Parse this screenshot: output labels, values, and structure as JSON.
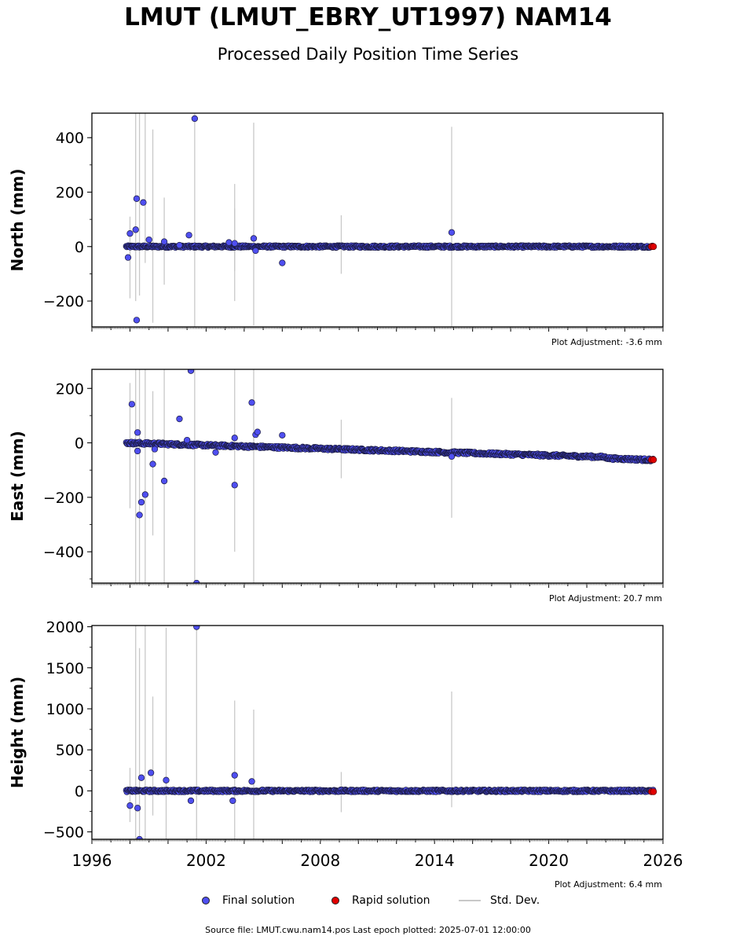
{
  "header": {
    "title": "LMUT (LMUT_EBRY_UT1997) NAM14",
    "subtitle": "Processed Daily Position Time Series"
  },
  "legend": {
    "final_label": "Final solution",
    "rapid_label": "Rapid solution",
    "std_label": "Std. Dev."
  },
  "footer": {
    "source": "Source file: LMUT.cwu.nam14.pos  Last epoch plotted: 2025-07-01 12:00:00"
  },
  "colors": {
    "final": "#4f4ff0",
    "rapid": "#e00000",
    "stddev": "#c8c8c8",
    "marker_edge": "#1a1a40"
  },
  "chart_data": [
    {
      "type": "scatter",
      "panel": "north",
      "ylabel": "North (mm)",
      "adjustment": "Plot Adjustment: -3.6 mm",
      "xlim": [
        1996,
        2026
      ],
      "ylim": [
        -295,
        490
      ],
      "yticks": [
        -200,
        0,
        200,
        400
      ],
      "trend": [
        [
          1997.8,
          0
        ],
        [
          2025.5,
          0
        ]
      ],
      "scatter": 4,
      "outliers": [
        [
          1997.9,
          -40
        ],
        [
          1998.0,
          48
        ],
        [
          1998.3,
          62
        ],
        [
          1998.35,
          176
        ],
        [
          1998.35,
          -270
        ],
        [
          1998.7,
          162
        ],
        [
          1999.0,
          25
        ],
        [
          1999.8,
          18
        ],
        [
          2000.6,
          5
        ],
        [
          2001.1,
          42
        ],
        [
          2001.4,
          470
        ],
        [
          2003.2,
          15
        ],
        [
          2003.5,
          12
        ],
        [
          2004.5,
          30
        ],
        [
          2004.6,
          -15
        ],
        [
          2006.0,
          -60
        ],
        [
          2014.9,
          52
        ]
      ],
      "errorbars": [
        [
          1998.0,
          -190,
          110
        ],
        [
          1998.3,
          -200,
          490
        ],
        [
          1998.5,
          -180,
          490
        ],
        [
          1998.8,
          -60,
          490
        ],
        [
          1999.2,
          -280,
          430
        ],
        [
          1999.8,
          -140,
          180
        ],
        [
          2001.4,
          -300,
          490
        ],
        [
          2003.5,
          -90,
          230
        ],
        [
          2003.5,
          -200,
          140
        ],
        [
          2004.5,
          -290,
          455
        ],
        [
          2009.1,
          -100,
          115
        ],
        [
          2014.9,
          -295,
          440
        ]
      ],
      "rapid": [
        [
          2025.4,
          0
        ],
        [
          2025.5,
          0
        ]
      ]
    },
    {
      "type": "scatter",
      "panel": "east",
      "ylabel": "East (mm)",
      "adjustment": "Plot Adjustment: 20.7 mm",
      "xlim": [
        1996,
        2026
      ],
      "ylim": [
        -515,
        270
      ],
      "yticks": [
        -400,
        -200,
        0,
        200
      ],
      "trend": [
        [
          1997.8,
          0
        ],
        [
          2022.9,
          -52
        ],
        [
          2023.2,
          -57
        ],
        [
          2025.5,
          -63
        ]
      ],
      "scatter": 5,
      "outliers": [
        [
          1998.1,
          142
        ],
        [
          1998.4,
          38
        ],
        [
          1998.4,
          -30
        ],
        [
          1998.5,
          -265
        ],
        [
          1998.6,
          -218
        ],
        [
          1998.8,
          -190
        ],
        [
          1999.2,
          -78
        ],
        [
          1999.3,
          -23
        ],
        [
          1999.8,
          -140
        ],
        [
          2000.6,
          88
        ],
        [
          2001.0,
          10
        ],
        [
          2001.2,
          265
        ],
        [
          2001.5,
          -515
        ],
        [
          2002.5,
          -35
        ],
        [
          2003.5,
          18
        ],
        [
          2003.5,
          -155
        ],
        [
          2004.4,
          148
        ],
        [
          2004.6,
          30
        ],
        [
          2004.7,
          40
        ],
        [
          2006.0,
          28
        ],
        [
          2014.9,
          -50
        ]
      ],
      "errorbars": [
        [
          1998.0,
          -240,
          220
        ],
        [
          1998.3,
          -515,
          270
        ],
        [
          1998.5,
          -515,
          270
        ],
        [
          1998.8,
          -515,
          270
        ],
        [
          1999.2,
          -340,
          190
        ],
        [
          1999.8,
          -515,
          270
        ],
        [
          2001.4,
          -515,
          270
        ],
        [
          2003.5,
          -400,
          270
        ],
        [
          2004.5,
          -515,
          270
        ],
        [
          2009.1,
          -130,
          85
        ],
        [
          2014.9,
          -275,
          165
        ]
      ],
      "rapid": [
        [
          2025.4,
          -62
        ],
        [
          2025.5,
          -62
        ]
      ]
    },
    {
      "type": "scatter",
      "panel": "height",
      "ylabel": "Height (mm)",
      "adjustment": "Plot Adjustment: 6.4 mm",
      "xlim": [
        1996,
        2026
      ],
      "xticks": [
        1996,
        2002,
        2008,
        2014,
        2020,
        2026
      ],
      "ylim": [
        -590,
        2015
      ],
      "yticks": [
        -500,
        0,
        500,
        1000,
        1500,
        2000
      ],
      "trend": [
        [
          1997.8,
          0
        ],
        [
          2025.5,
          0
        ]
      ],
      "scatter": 14,
      "outliers": [
        [
          1998.0,
          -180
        ],
        [
          1998.4,
          -210
        ],
        [
          1998.5,
          -590
        ],
        [
          1998.6,
          160
        ],
        [
          1999.1,
          220
        ],
        [
          1999.9,
          130
        ],
        [
          2001.2,
          -120
        ],
        [
          2001.5,
          2000
        ],
        [
          2003.4,
          -120
        ],
        [
          2003.5,
          190
        ],
        [
          2004.4,
          115
        ]
      ],
      "errorbars": [
        [
          1998.0,
          -380,
          280
        ],
        [
          1998.3,
          -590,
          2015
        ],
        [
          1998.5,
          -590,
          1740
        ],
        [
          1998.8,
          -590,
          2015
        ],
        [
          1999.2,
          -300,
          1150
        ],
        [
          1999.9,
          -590,
          1990
        ],
        [
          2001.5,
          -590,
          2015
        ],
        [
          2003.5,
          -590,
          1100
        ],
        [
          2004.5,
          -590,
          990
        ],
        [
          2009.1,
          -260,
          230
        ],
        [
          2014.9,
          -200,
          1210
        ]
      ],
      "rapid": [
        [
          2025.4,
          -10
        ],
        [
          2025.5,
          -10
        ]
      ]
    }
  ]
}
